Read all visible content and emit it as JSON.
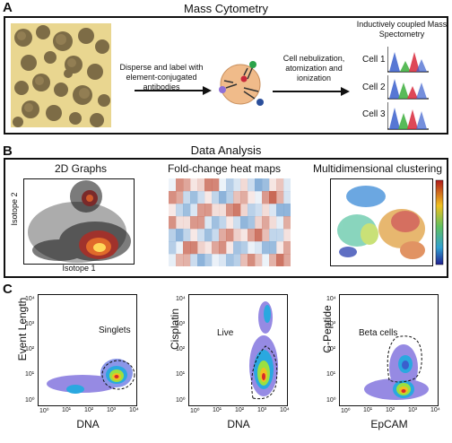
{
  "panelA": {
    "letter": "A",
    "title": "Mass Cytometry",
    "step1": "Disperse and label with element-conjugated antibodies",
    "step2": "Cell nebulization, atomization and ionization",
    "ms_title": "Inductively coupled Mass Spectometry",
    "cells": [
      "Cell 1",
      "Cell 2",
      "Cell 3"
    ]
  },
  "panelB": {
    "letter": "B",
    "title": "Data Analysis",
    "sub1": "2D Graphs",
    "sub2": "Fold-change heat maps",
    "sub3": "Multidimensional clustering",
    "ylabel": "Isotope 2",
    "xlabel": "Isotope 1"
  },
  "panelC": {
    "letter": "C",
    "plots": [
      {
        "ylabel": "Event Length",
        "xlabel": "DNA",
        "gate": "Singlets"
      },
      {
        "ylabel": "Cisplatin",
        "xlabel": "DNA",
        "gate": "Live"
      },
      {
        "ylabel": "C-Peptide",
        "xlabel": "EpCAM",
        "gate": "Beta cells"
      }
    ],
    "ticks": [
      "10⁰",
      "10¹",
      "10²",
      "10³",
      "10⁴"
    ]
  },
  "colors": {
    "peak_blue": "#3a5fcd",
    "peak_green": "#3cae3c",
    "peak_red": "#d8283a",
    "heat_red": "#c0503a",
    "heat_blue": "#6f9fd0"
  }
}
